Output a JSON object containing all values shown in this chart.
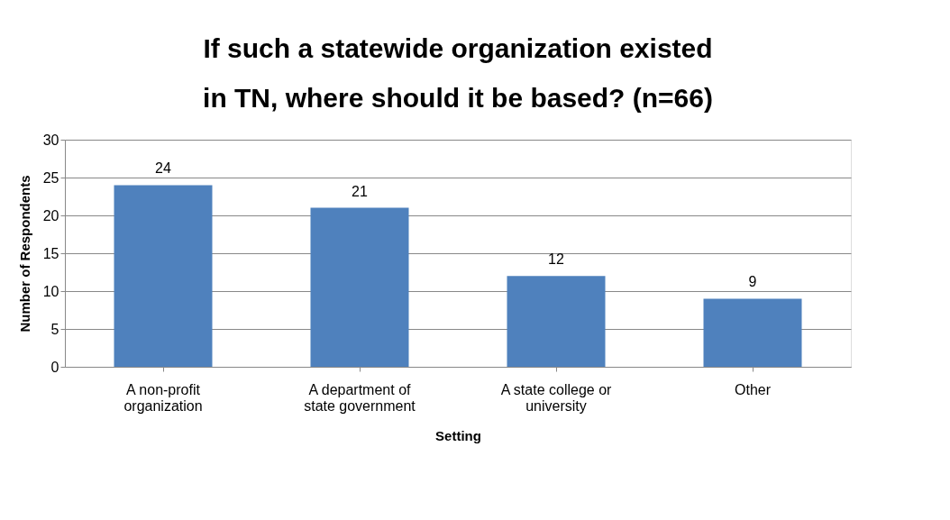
{
  "chart_data": {
    "type": "bar",
    "title": "If such a statewide organization existed in TN, where should it be based? (n=66)",
    "xlabel": "Setting",
    "ylabel": "Number of Respondents",
    "categories": [
      "A non-profit organization",
      "A department of state government",
      "A state college or university",
      "Other"
    ],
    "values": [
      24,
      21,
      12,
      9
    ],
    "color": "#4f81bd",
    "ylim": [
      0,
      30
    ],
    "yticks": [
      0,
      5,
      10,
      15,
      20,
      25,
      30
    ],
    "grid": "y",
    "data_labels": true
  }
}
